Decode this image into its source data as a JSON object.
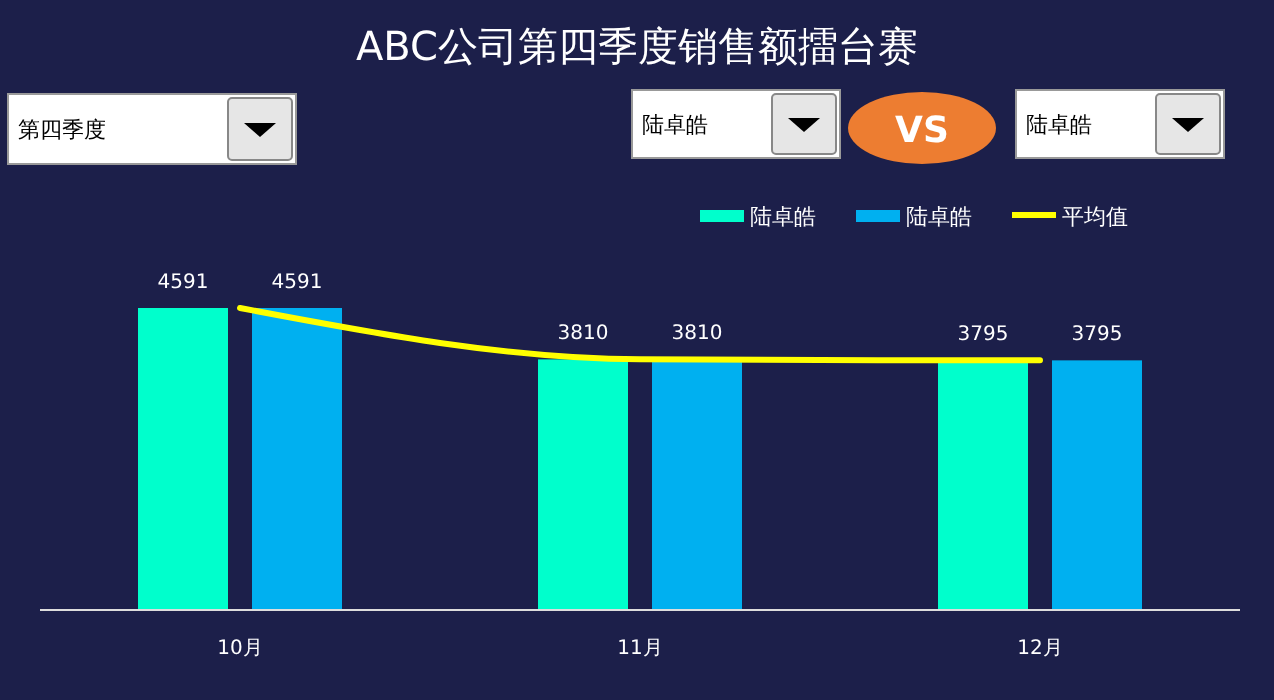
{
  "chart_data": {
    "type": "bar",
    "title": "ABC公司第四季度销售额擂台赛",
    "categories": [
      "10月",
      "11月",
      "12月"
    ],
    "series": [
      {
        "name": "陆卓皓",
        "color": "#00ffcc",
        "values": [
          4591,
          3810,
          3795
        ],
        "value_labels": [
          "4591",
          "3810",
          "3795"
        ]
      },
      {
        "name": "陆卓皓",
        "color": "#00b0f0",
        "values": [
          4591,
          3810,
          3795
        ],
        "value_labels": [
          "4591",
          "3810",
          "3795"
        ]
      },
      {
        "name": "平均值",
        "type": "line",
        "color": "#ffff00",
        "values": [
          4591,
          3810,
          3795
        ]
      }
    ],
    "legend": "top right",
    "annotations": [
      "第四季度",
      "陆卓皓",
      "VS",
      "陆卓皓"
    ]
  }
}
